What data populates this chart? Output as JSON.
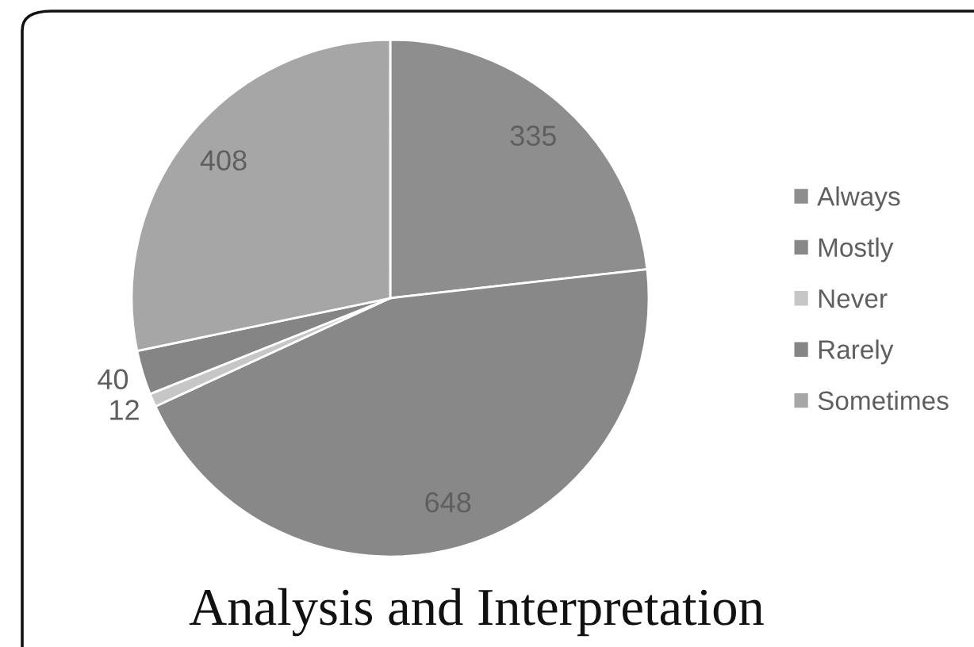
{
  "chart_data": {
    "type": "pie",
    "title": "Analysis and Interpretation",
    "categories": [
      "Always",
      "Mostly",
      "Never",
      "Rarely",
      "Sometimes"
    ],
    "values": [
      335,
      648,
      12,
      40,
      408
    ],
    "colors": [
      "#8e8e8e",
      "#888888",
      "#c6c6c6",
      "#858585",
      "#a6a6a6"
    ],
    "data_labels": true,
    "legend": "right"
  }
}
